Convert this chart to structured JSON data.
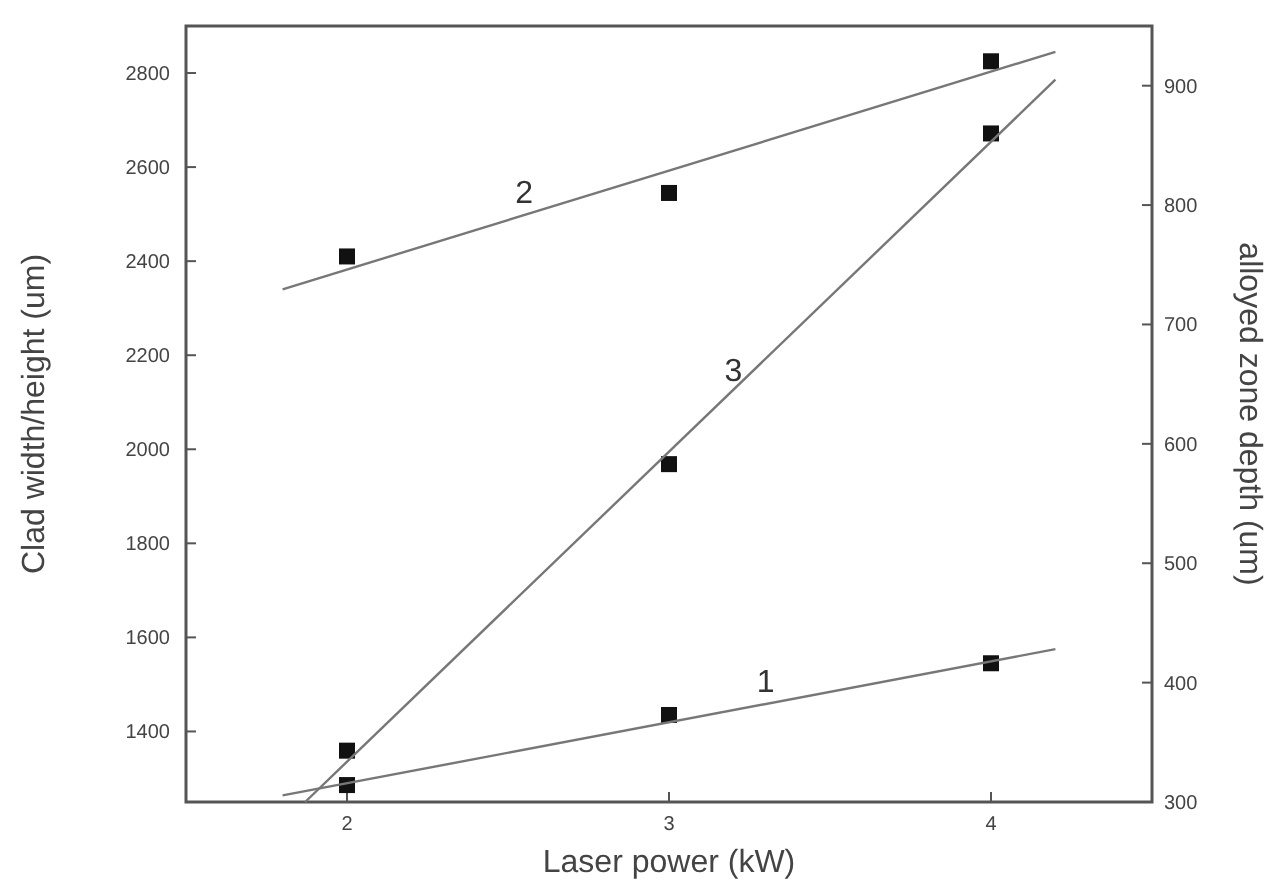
{
  "chart_data": {
    "type": "scatter",
    "xlabel": "Laser power (kW)",
    "ylabel": "Clad width/height (um)",
    "y2label": "alloyed zone depth (um)",
    "xlim": [
      1.5,
      4.5
    ],
    "xticks": [
      2,
      3,
      4
    ],
    "ylim": [
      1250,
      2900
    ],
    "yticks": [
      1400,
      1600,
      1800,
      2000,
      2200,
      2400,
      2600,
      2800
    ],
    "y2lim": [
      300,
      950
    ],
    "y2ticks": [
      300,
      400,
      500,
      600,
      700,
      800,
      900
    ],
    "grid": false,
    "marker": "square",
    "series": [
      {
        "color": "#111111",
        "x": [
          2,
          3,
          4
        ],
        "values": [
          1286,
          1435,
          1545
        ]
      },
      {
        "color": "#111111",
        "x": [
          2,
          3,
          4
        ],
        "values": [
          2410,
          2545,
          2825
        ]
      },
      {
        "color": "#111111",
        "axis": "y2",
        "x": [
          2,
          3,
          4
        ],
        "values": [
          343,
          583,
          860
        ]
      },
      {
        "type": "line",
        "color": "#777777",
        "marker": "none",
        "x": [
          1.8,
          4.2
        ],
        "values": [
          1264,
          1575
        ]
      },
      {
        "type": "line",
        "color": "#777777",
        "marker": "none",
        "x": [
          1.8,
          4.2
        ],
        "values": [
          2340,
          2845
        ]
      },
      {
        "type": "line",
        "color": "#777777",
        "marker": "none",
        "axis": "y2",
        "x": [
          1.87,
          4.2
        ],
        "values": [
          300,
          905
        ]
      }
    ],
    "annotations": [
      {
        "text": "1",
        "x": 3.3,
        "y": 1458
      },
      {
        "text": "2",
        "x": 2.55,
        "y": 2498
      },
      {
        "text": "3",
        "x": 3.2,
        "y": 2119
      }
    ]
  }
}
